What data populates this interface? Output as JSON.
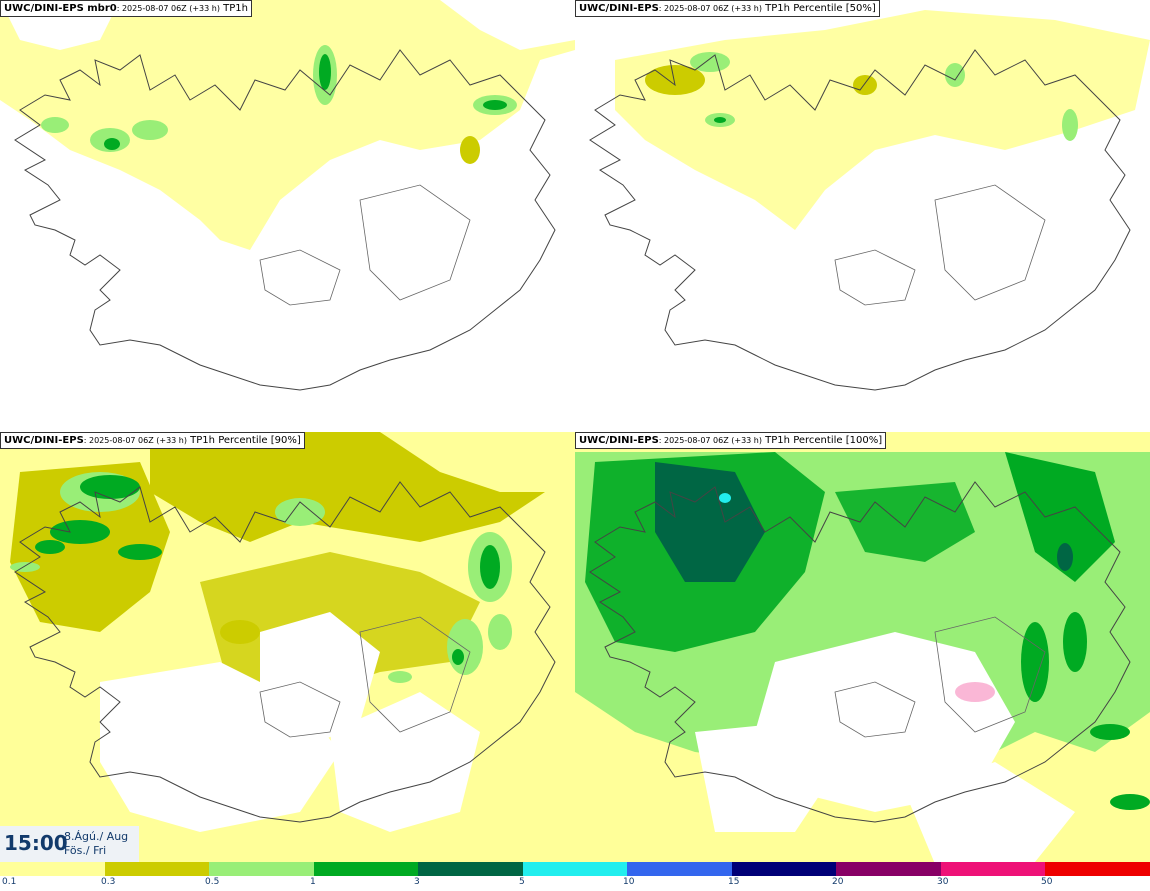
{
  "panels": [
    {
      "model": "UWC/DINI-EPS mbr0",
      "meta": ": 2025-08-07 06Z (+33 h)",
      "field": "TP1h"
    },
    {
      "model": "UWC/DINI-EPS",
      "meta": ": 2025-08-07 06Z (+33 h)",
      "field": "TP1h Percentile [50%]"
    },
    {
      "model": "UWC/DINI-EPS",
      "meta": ": 2025-08-07 06Z (+33 h)",
      "field": "TP1h Percentile [90%]"
    },
    {
      "model": "UWC/DINI-EPS",
      "meta": ": 2025-08-07 06Z (+33 h)",
      "field": "TP1h Percentile [100%]"
    }
  ],
  "time": {
    "hour": "15:00",
    "date_line1": "8.Ágú./ Aug",
    "date_line2": "Fös./ Fri"
  },
  "legend": {
    "colors": [
      "#ffff99",
      "#cccc00",
      "#99ee77",
      "#00aa22",
      "#006644",
      "#22eeee",
      "#3366ee",
      "#000077",
      "#880066",
      "#ee1177",
      "#ee0000"
    ],
    "ticks": [
      "0.1",
      "0.3",
      "0.5",
      "1",
      "3",
      "5",
      "10",
      "15",
      "20",
      "30",
      "50"
    ]
  }
}
